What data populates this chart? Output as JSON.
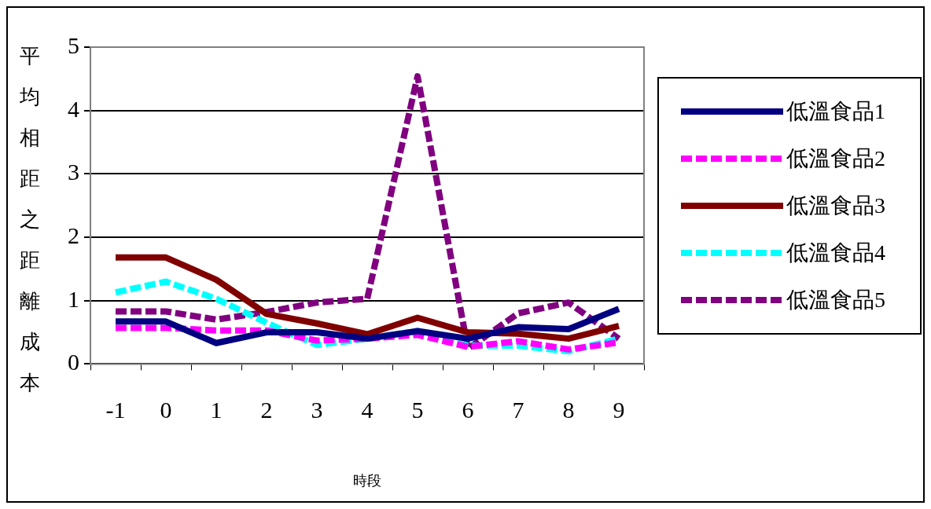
{
  "chart_data": {
    "type": "line",
    "xlabel": "時段",
    "ylabel": "平均相距之距離成本",
    "categories": [
      "-1",
      "0",
      "1",
      "2",
      "3",
      "4",
      "5",
      "6",
      "7",
      "8",
      "9"
    ],
    "ylim": [
      0,
      5
    ],
    "yticks": [
      0,
      1,
      2,
      3,
      4,
      5
    ],
    "grid": "y",
    "legend": "right",
    "marker": "none",
    "series": [
      {
        "name": "低溫食品1",
        "color": "#000080",
        "line_style": "solid",
        "values": [
          0.67,
          0.67,
          0.33,
          0.5,
          0.5,
          0.4,
          0.52,
          0.4,
          0.58,
          0.55,
          0.87
        ]
      },
      {
        "name": "低溫食品2",
        "color": "#ff00ff",
        "line_style": "dashed",
        "values": [
          0.57,
          0.57,
          0.53,
          0.53,
          0.37,
          0.4,
          0.46,
          0.27,
          0.36,
          0.23,
          0.34
        ]
      },
      {
        "name": "低溫食品3",
        "color": "#800000",
        "line_style": "solid",
        "values": [
          1.68,
          1.68,
          1.33,
          0.79,
          0.64,
          0.47,
          0.73,
          0.5,
          0.48,
          0.4,
          0.6
        ]
      },
      {
        "name": "低溫食品4",
        "color": "#00ffff",
        "line_style": "dashed",
        "values": [
          1.13,
          1.3,
          1.03,
          0.65,
          0.3,
          0.4,
          0.52,
          0.29,
          0.29,
          0.2,
          0.4
        ]
      },
      {
        "name": "低溫食品5",
        "color": "#800080",
        "line_style": "dashed",
        "values": [
          0.83,
          0.83,
          0.7,
          0.82,
          0.97,
          1.03,
          4.54,
          0.24,
          0.8,
          0.97,
          0.4
        ]
      }
    ]
  }
}
